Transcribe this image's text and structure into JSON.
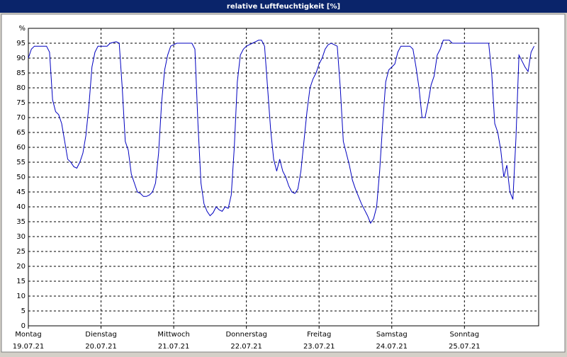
{
  "chart_data": {
    "type": "line",
    "title": "relative Luftfeuchtigkeit [%]",
    "x": [
      0,
      1,
      2,
      4,
      6,
      7,
      8,
      9,
      10,
      11,
      12,
      13,
      14,
      15,
      16,
      17,
      18,
      19,
      20,
      21,
      22,
      23,
      24,
      26,
      27,
      29,
      30,
      31,
      32,
      33,
      34,
      35,
      36,
      37,
      38,
      39,
      40,
      41,
      42,
      43,
      44,
      45,
      46,
      47,
      48,
      49,
      52,
      54,
      55,
      56,
      57,
      58,
      59,
      60,
      61,
      62,
      63,
      64,
      65,
      66,
      67,
      68,
      69,
      70,
      71,
      72,
      73,
      74,
      75,
      76,
      77,
      78,
      79,
      80,
      81,
      82,
      83,
      84,
      85,
      86,
      87,
      88,
      89,
      90,
      91,
      92,
      93,
      94,
      95,
      96,
      97,
      98,
      99,
      100,
      101,
      102,
      103,
      104,
      105,
      106,
      107,
      108,
      109,
      110,
      111,
      112,
      113,
      114,
      115,
      116,
      117,
      118,
      119,
      120,
      121,
      122,
      123,
      124,
      126,
      127,
      128,
      129,
      130,
      131,
      132,
      133,
      134,
      135,
      136,
      137,
      138,
      139,
      140,
      152,
      153,
      154,
      155,
      156,
      157,
      158,
      159,
      160,
      161,
      162,
      163,
      164,
      165,
      166,
      167
    ],
    "series": [
      {
        "name": "relative Luftfeuchtigkeit",
        "color": "#0000c0",
        "values": [
          90,
          93,
          94,
          94,
          94,
          92,
          76,
          72,
          71,
          68,
          62,
          56,
          55,
          53.5,
          53,
          55,
          58,
          64,
          74,
          87,
          92,
          94,
          94,
          94,
          95,
          95.5,
          95,
          80,
          62,
          59,
          51,
          48,
          45,
          44.5,
          43.5,
          43.5,
          44,
          45,
          48,
          58,
          75,
          86,
          91,
          94,
          94.5,
          95,
          95,
          95,
          93,
          68,
          48,
          41,
          38.5,
          37,
          38,
          40,
          39,
          38.5,
          40,
          39.5,
          44,
          60,
          82,
          91,
          93,
          94,
          94.5,
          95,
          95.5,
          96,
          96,
          94,
          80,
          66,
          56,
          52,
          56,
          52,
          50,
          47,
          45,
          44.5,
          46,
          52,
          62,
          72,
          80,
          83,
          85,
          88,
          90,
          93,
          94.5,
          95,
          94.5,
          94,
          80,
          62,
          58,
          54,
          49,
          46,
          43.5,
          41,
          39,
          37,
          34.5,
          36,
          40,
          52,
          68,
          82,
          86,
          87,
          88,
          92,
          94,
          94,
          94,
          93,
          87,
          80,
          70,
          70,
          75,
          81,
          84,
          91,
          93,
          96,
          96,
          96,
          95,
          95,
          85,
          68,
          65,
          59,
          50,
          54,
          45,
          42.5,
          63,
          91,
          89,
          87,
          85.5,
          92,
          94
        ]
      }
    ],
    "xlim": [
      0,
      168.5
    ],
    "xticks": [
      {
        "value": 0,
        "label": "Montag"
      },
      {
        "value": 24,
        "label": "Dienstag"
      },
      {
        "value": 48,
        "label": "Mittwoch"
      },
      {
        "value": 72,
        "label": "Donnerstag"
      },
      {
        "value": 96,
        "label": "Freitag"
      },
      {
        "value": 120,
        "label": "Samstag"
      },
      {
        "value": 144,
        "label": "Sonntag"
      }
    ],
    "xtick_dates": [
      "19.07.21",
      "20.07.21",
      "21.07.21",
      "22.07.21",
      "23.07.21",
      "24.07.21",
      "25.07.21"
    ],
    "ylim": [
      0,
      100
    ],
    "yticks": [
      0,
      5,
      10,
      15,
      20,
      25,
      30,
      35,
      40,
      45,
      50,
      55,
      60,
      65,
      70,
      75,
      80,
      85,
      90,
      95,
      {
        "value": 100,
        "label": "%"
      }
    ],
    "grid": true
  }
}
